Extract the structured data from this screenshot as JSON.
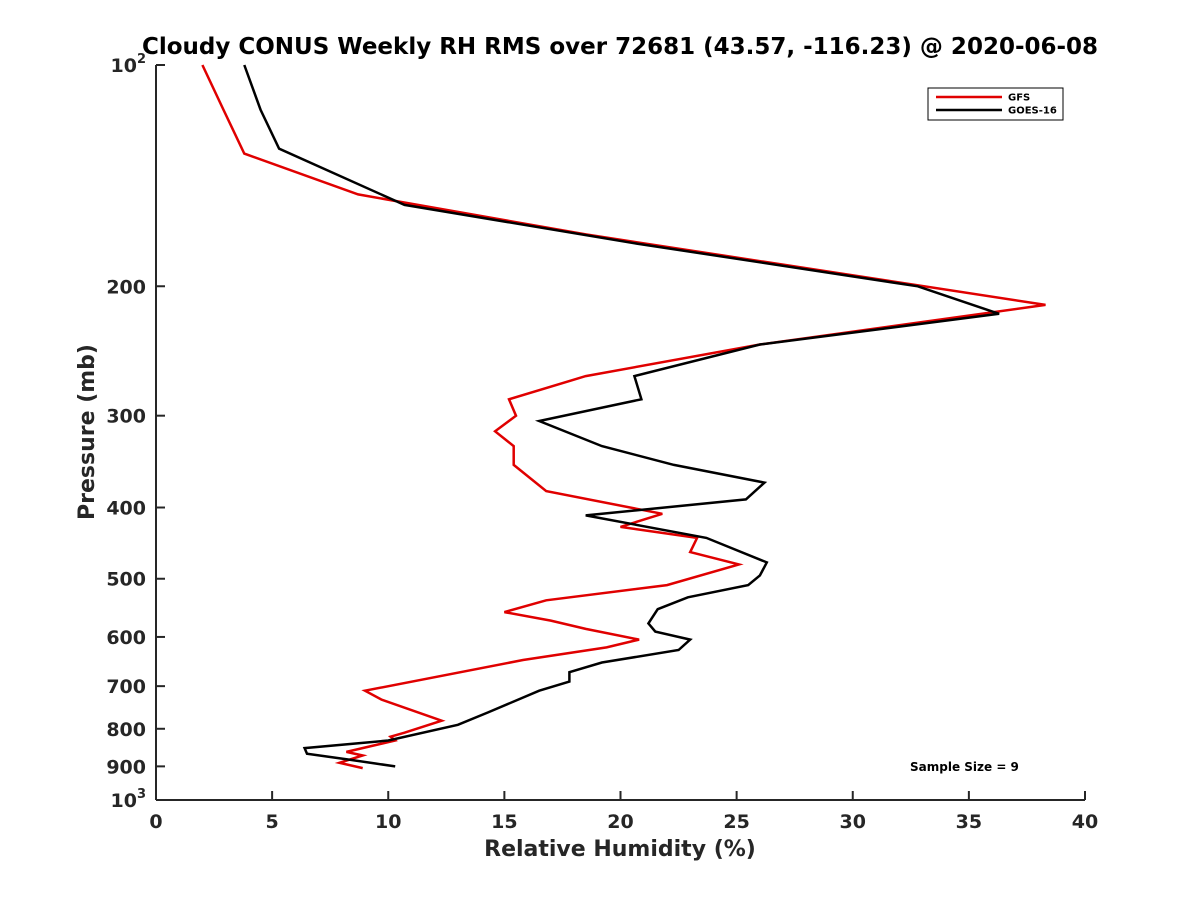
{
  "chart_data": {
    "type": "line",
    "title": "Cloudy CONUS Weekly RH RMS over 72681 (43.57, -116.23) @ 2020-06-08",
    "xlabel": "Relative Humidity (%)",
    "ylabel": "Pressure (mb)",
    "xlim": [
      0,
      40
    ],
    "ylim": [
      100,
      1000
    ],
    "y_scale": "log",
    "y_reversed": true,
    "grid": false,
    "x_ticks": [
      0,
      5,
      10,
      15,
      20,
      25,
      30,
      35,
      40
    ],
    "x_tick_labels": [
      "0",
      "5",
      "10",
      "15",
      "20",
      "25",
      "30",
      "35",
      "40"
    ],
    "y_ticks": [
      100,
      200,
      300,
      400,
      500,
      600,
      700,
      800,
      900,
      1000
    ],
    "y_tick_labels": [
      {
        "base": "10",
        "exp": "2"
      },
      {
        "base": "200",
        "exp": ""
      },
      {
        "base": "300",
        "exp": ""
      },
      {
        "base": "400",
        "exp": ""
      },
      {
        "base": "500",
        "exp": ""
      },
      {
        "base": "600",
        "exp": ""
      },
      {
        "base": "700",
        "exp": ""
      },
      {
        "base": "800",
        "exp": ""
      },
      {
        "base": "900",
        "exp": ""
      },
      {
        "base": "10",
        "exp": "3"
      }
    ],
    "legend_position": "top-right",
    "annotation": "Sample Size = 9",
    "series": [
      {
        "name": "GFS",
        "color": "#e00000",
        "points": [
          [
            2.0,
            100
          ],
          [
            2.9,
            115
          ],
          [
            3.8,
            132
          ],
          [
            8.7,
            150
          ],
          [
            18.5,
            170
          ],
          [
            38.3,
            212
          ],
          [
            26.0,
            240
          ],
          [
            18.5,
            265
          ],
          [
            15.2,
            285
          ],
          [
            15.5,
            300
          ],
          [
            14.6,
            315
          ],
          [
            15.4,
            330
          ],
          [
            15.4,
            350
          ],
          [
            16.8,
            380
          ],
          [
            21.8,
            408
          ],
          [
            20.0,
            425
          ],
          [
            23.3,
            440
          ],
          [
            23.0,
            460
          ],
          [
            25.1,
            478
          ],
          [
            22.0,
            510
          ],
          [
            16.8,
            535
          ],
          [
            15.0,
            555
          ],
          [
            17.0,
            570
          ],
          [
            18.5,
            585
          ],
          [
            20.8,
            605
          ],
          [
            19.4,
            620
          ],
          [
            15.8,
            645
          ],
          [
            9.0,
            710
          ],
          [
            9.7,
            730
          ],
          [
            12.3,
            780
          ],
          [
            10.7,
            810
          ],
          [
            10.1,
            820
          ],
          [
            10.3,
            830
          ],
          [
            8.2,
            860
          ],
          [
            8.9,
            870
          ],
          [
            7.9,
            890
          ],
          [
            8.9,
            905
          ]
        ]
      },
      {
        "name": "GOES-16",
        "color": "#000000",
        "points": [
          [
            3.8,
            100
          ],
          [
            4.5,
            115
          ],
          [
            5.3,
            130
          ],
          [
            10.7,
            155
          ],
          [
            20.7,
            175
          ],
          [
            32.8,
            200
          ],
          [
            36.3,
            218
          ],
          [
            26.0,
            240
          ],
          [
            20.6,
            265
          ],
          [
            20.9,
            285
          ],
          [
            16.5,
            305
          ],
          [
            19.2,
            330
          ],
          [
            22.3,
            350
          ],
          [
            26.2,
            370
          ],
          [
            25.4,
            390
          ],
          [
            18.5,
            410
          ],
          [
            23.7,
            440
          ],
          [
            26.3,
            475
          ],
          [
            26.0,
            495
          ],
          [
            25.5,
            510
          ],
          [
            22.9,
            530
          ],
          [
            21.6,
            550
          ],
          [
            21.2,
            575
          ],
          [
            21.5,
            590
          ],
          [
            23.0,
            605
          ],
          [
            22.5,
            625
          ],
          [
            19.2,
            650
          ],
          [
            17.8,
            670
          ],
          [
            17.8,
            690
          ],
          [
            16.5,
            710
          ],
          [
            14.3,
            760
          ],
          [
            13.0,
            790
          ],
          [
            10.0,
            830
          ],
          [
            6.4,
            850
          ],
          [
            6.5,
            865
          ],
          [
            8.2,
            880
          ],
          [
            10.3,
            900
          ]
        ]
      }
    ]
  }
}
